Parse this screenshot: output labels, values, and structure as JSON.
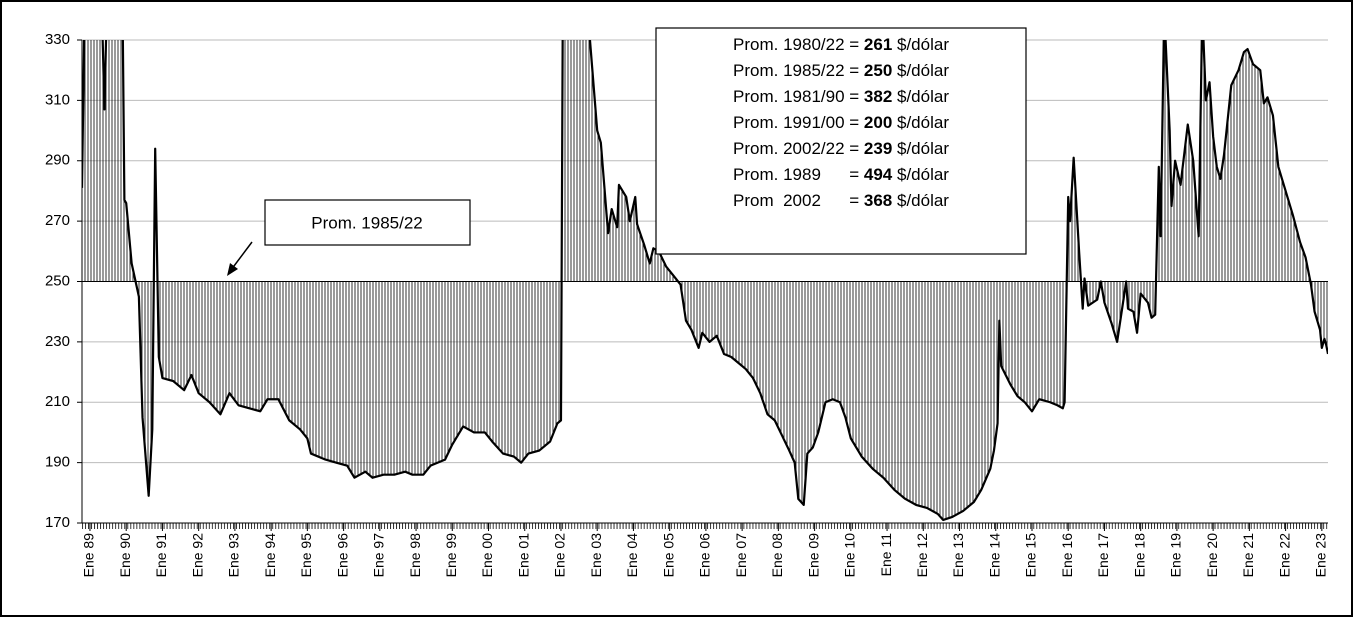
{
  "chart_data": {
    "type": "area-line",
    "annotation": "Prom. 1985/22",
    "reference_index": 1,
    "averages": [
      {
        "label": "Prom. 1980/22 = ",
        "value": 261,
        "unit": " $/dólar"
      },
      {
        "label": "Prom. 1985/22 = ",
        "value": 250,
        "unit": " $/dólar"
      },
      {
        "label": "Prom. 1981/90 = ",
        "value": 382,
        "unit": " $/dólar"
      },
      {
        "label": "Prom. 1991/00 = ",
        "value": 200,
        "unit": " $/dólar"
      },
      {
        "label": "Prom. 2002/22 = ",
        "value": 239,
        "unit": " $/dólar"
      },
      {
        "label": "Prom. 1989      = ",
        "value": 494,
        "unit": " $/dólar"
      },
      {
        "label": "Prom  2002      = ",
        "value": 368,
        "unit": " $/dólar"
      }
    ],
    "xlim": [
      1988.78,
      2023.17
    ],
    "ylim": [
      170,
      330
    ],
    "yticks": [
      170,
      190,
      210,
      230,
      250,
      270,
      290,
      310,
      330
    ],
    "xticks": [
      {
        "value": 1989,
        "label": "Ene 89"
      },
      {
        "value": 1990,
        "label": "Ene 90"
      },
      {
        "value": 1991,
        "label": "Ene 91"
      },
      {
        "value": 1992,
        "label": "Ene 92"
      },
      {
        "value": 1993,
        "label": "Ene 93"
      },
      {
        "value": 1994,
        "label": "Ene 94"
      },
      {
        "value": 1995,
        "label": "Ene 95"
      },
      {
        "value": 1996,
        "label": "Ene 96"
      },
      {
        "value": 1997,
        "label": "Ene 97"
      },
      {
        "value": 1998,
        "label": "Ene 98"
      },
      {
        "value": 1999,
        "label": "Ene 99"
      },
      {
        "value": 2000,
        "label": "Ene 00"
      },
      {
        "value": 2001,
        "label": "Ene 01"
      },
      {
        "value": 2002,
        "label": "Ene 02"
      },
      {
        "value": 2003,
        "label": "Ene 03"
      },
      {
        "value": 2004,
        "label": "Ene 04"
      },
      {
        "value": 2005,
        "label": "Ene 05"
      },
      {
        "value": 2006,
        "label": "Ene 06"
      },
      {
        "value": 2007,
        "label": "Ene 07"
      },
      {
        "value": 2008,
        "label": "Ene 08"
      },
      {
        "value": 2009,
        "label": "Ene 09"
      },
      {
        "value": 2010,
        "label": "Ene 10"
      },
      {
        "value": 2011,
        "label": "Ene 11"
      },
      {
        "value": 2012,
        "label": "Ene 12"
      },
      {
        "value": 2013,
        "label": "Ene 13"
      },
      {
        "value": 2014,
        "label": "Ene 14"
      },
      {
        "value": 2015,
        "label": "Ene 15"
      },
      {
        "value": 2016,
        "label": "Ene 16"
      },
      {
        "value": 2017,
        "label": "Ene 17"
      },
      {
        "value": 2018,
        "label": "Ene 18"
      },
      {
        "value": 2019,
        "label": "Ene 19"
      },
      {
        "value": 2020,
        "label": "Ene 20"
      },
      {
        "value": 2021,
        "label": "Ene 21"
      },
      {
        "value": 2022,
        "label": "Ene 22"
      },
      {
        "value": 2023,
        "label": "Ene 23"
      }
    ],
    "grid": true,
    "color": "#000000",
    "x": [
      1988.78,
      1988.85,
      1989.2,
      1989.4,
      1989.5,
      1989.8,
      1989.9,
      1989.95,
      1990.0,
      1990.15,
      1990.35,
      1990.45,
      1990.62,
      1990.72,
      1990.8,
      1990.9,
      1991.0,
      1991.3,
      1991.6,
      1991.8,
      1992.0,
      1992.3,
      1992.6,
      1992.85,
      1993.1,
      1993.4,
      1993.7,
      1993.9,
      1994.2,
      1994.5,
      1994.8,
      1995.0,
      1995.1,
      1995.5,
      1995.8,
      1996.1,
      1996.3,
      1996.6,
      1996.8,
      1997.1,
      1997.4,
      1997.7,
      1997.9,
      1998.2,
      1998.4,
      1998.8,
      1999.0,
      1999.3,
      1999.6,
      1999.9,
      2000.1,
      2000.4,
      2000.7,
      2000.9,
      2001.1,
      2001.4,
      2001.7,
      2001.9,
      2002.0,
      2002.05,
      2002.5,
      2002.8,
      2003.0,
      2003.1,
      2003.3,
      2003.4,
      2003.55,
      2003.6,
      2003.8,
      2003.9,
      2004.05,
      2004.1,
      2004.3,
      2004.45,
      2004.55,
      2004.7,
      2004.9,
      2005.1,
      2005.3,
      2005.45,
      2005.6,
      2005.8,
      2005.9,
      2006.1,
      2006.3,
      2006.5,
      2006.7,
      2006.9,
      2007.1,
      2007.3,
      2007.5,
      2007.7,
      2007.9,
      2008.1,
      2008.3,
      2008.45,
      2008.55,
      2008.7,
      2008.8,
      2008.95,
      2009.1,
      2009.3,
      2009.5,
      2009.7,
      2009.85,
      2010.0,
      2010.3,
      2010.6,
      2010.9,
      2011.2,
      2011.5,
      2011.8,
      2012.1,
      2012.4,
      2012.55,
      2012.8,
      2013.1,
      2013.4,
      2013.6,
      2013.85,
      2013.95,
      2014.05,
      2014.1,
      2014.15,
      2014.4,
      2014.6,
      2014.8,
      2015.0,
      2015.2,
      2015.5,
      2015.7,
      2015.85,
      2015.9,
      2016.0,
      2016.05,
      2016.15,
      2016.3,
      2016.4,
      2016.45,
      2016.55,
      2016.8,
      2016.9,
      2017.0,
      2017.2,
      2017.35,
      2017.5,
      2017.6,
      2017.65,
      2017.8,
      2017.9,
      2018.0,
      2018.2,
      2018.3,
      2018.4,
      2018.5,
      2018.55,
      2018.65,
      2018.8,
      2018.85,
      2018.95,
      2019.1,
      2019.3,
      2019.45,
      2019.6,
      2019.7,
      2019.8,
      2019.9,
      2020.0,
      2020.1,
      2020.2,
      2020.3,
      2020.5,
      2020.7,
      2020.85,
      2020.95,
      2021.1,
      2021.3,
      2021.4,
      2021.5,
      2021.65,
      2021.8,
      2022.0,
      2022.2,
      2022.4,
      2022.55,
      2022.7,
      2022.8,
      2022.95,
      2023.0,
      2023.07,
      2023.12,
      2023.17
    ],
    "values": [
      281,
      340,
      400,
      307,
      360,
      400,
      340,
      277,
      276,
      256,
      245,
      205,
      179,
      201,
      294,
      225,
      218,
      217,
      214,
      219,
      213,
      210,
      206,
      213,
      209,
      208,
      207,
      211,
      211,
      204,
      201,
      198,
      193,
      191,
      190,
      189,
      185,
      187,
      185,
      186,
      186,
      187,
      186,
      186,
      189,
      191,
      196,
      202,
      200,
      200,
      197,
      193,
      192,
      190,
      193,
      194,
      197,
      203,
      204,
      340,
      380,
      330,
      300,
      296,
      266,
      274,
      268,
      282,
      278,
      270,
      278,
      269,
      262,
      256,
      261,
      260,
      255,
      252,
      249,
      237,
      234,
      228,
      233,
      230,
      232,
      226,
      225,
      223,
      221,
      218,
      213,
      206,
      204,
      199,
      194,
      190,
      178,
      176,
      193,
      195,
      200,
      210,
      211,
      210,
      205,
      198,
      192,
      188,
      185,
      181,
      178,
      176,
      175,
      173,
      171,
      172,
      174,
      177,
      181,
      188,
      194,
      203,
      237,
      222,
      216,
      212,
      210,
      207,
      211,
      210,
      209,
      208,
      210,
      278,
      270,
      291,
      260,
      241,
      251,
      242,
      244,
      250,
      243,
      236,
      230,
      242,
      250,
      241,
      240,
      233,
      246,
      243,
      238,
      239,
      288,
      265,
      340,
      300,
      275,
      290,
      282,
      302,
      290,
      265,
      340,
      310,
      316,
      298,
      288,
      284,
      292,
      315,
      320,
      326,
      327,
      322,
      320,
      309,
      311,
      305,
      288,
      280,
      272,
      263,
      258,
      249,
      240,
      234,
      228,
      231,
      229,
      226
    ]
  }
}
